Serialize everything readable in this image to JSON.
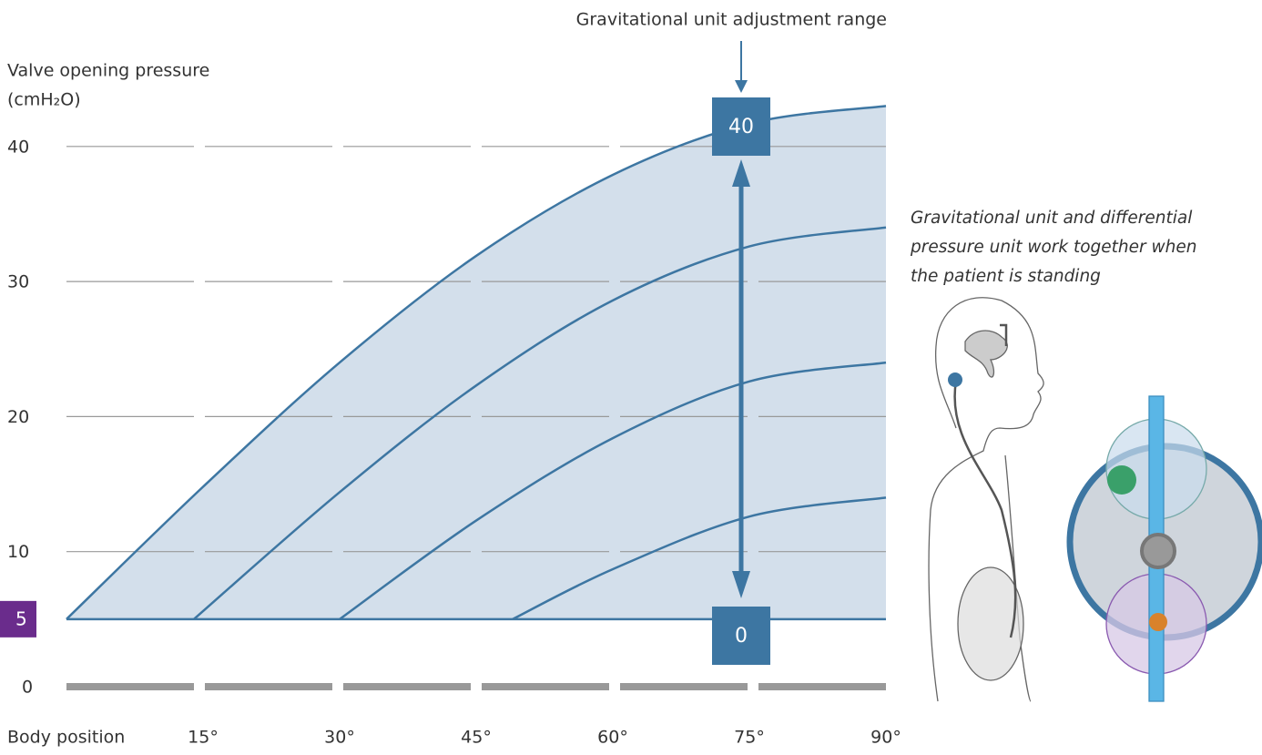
{
  "chart_data": {
    "type": "line",
    "y_label": [
      "Valve opening pressure",
      "(cmH₂O)"
    ],
    "x_label": "Body position",
    "annotation": "Gravitational unit adjustment range",
    "range_labels": [
      "40",
      "0"
    ],
    "caption": [
      "Gravitational unit and differential",
      "pressure unit work together when",
      "the patient is standing"
    ],
    "xlim": [
      0,
      90
    ],
    "xticks": [
      {
        "value": 15,
        "label": "15°"
      },
      {
        "value": 30,
        "label": "30°"
      },
      {
        "value": 45,
        "label": "45°"
      },
      {
        "value": 60,
        "label": "60°"
      },
      {
        "value": 75,
        "label": "75°"
      },
      {
        "value": 90,
        "label": "90°"
      }
    ],
    "ylim": [
      0,
      44
    ],
    "yticks": [
      0,
      5,
      10,
      20,
      30,
      40
    ],
    "highlight_tick": 5,
    "color": "#3d76a2",
    "fill": "#d3dfeb",
    "highlight_color": "#6a2c8c",
    "series": [
      {
        "x": [
          0,
          15,
          30,
          45,
          60,
          75,
          90
        ],
        "values": [
          5,
          14.8,
          24,
          31.9,
          37.9,
          41.7,
          43
        ]
      },
      {
        "x": [
          14,
          30,
          45,
          60,
          75,
          90
        ],
        "values": [
          5,
          14.4,
          22.3,
          28.6,
          32.6,
          34
        ]
      },
      {
        "x": [
          30,
          45,
          60,
          75,
          90
        ],
        "values": [
          5,
          12.3,
          18.4,
          22.6,
          24
        ]
      },
      {
        "x": [
          49,
          60,
          75,
          90
        ],
        "values": [
          5,
          8.7,
          12.6,
          14
        ]
      }
    ]
  }
}
